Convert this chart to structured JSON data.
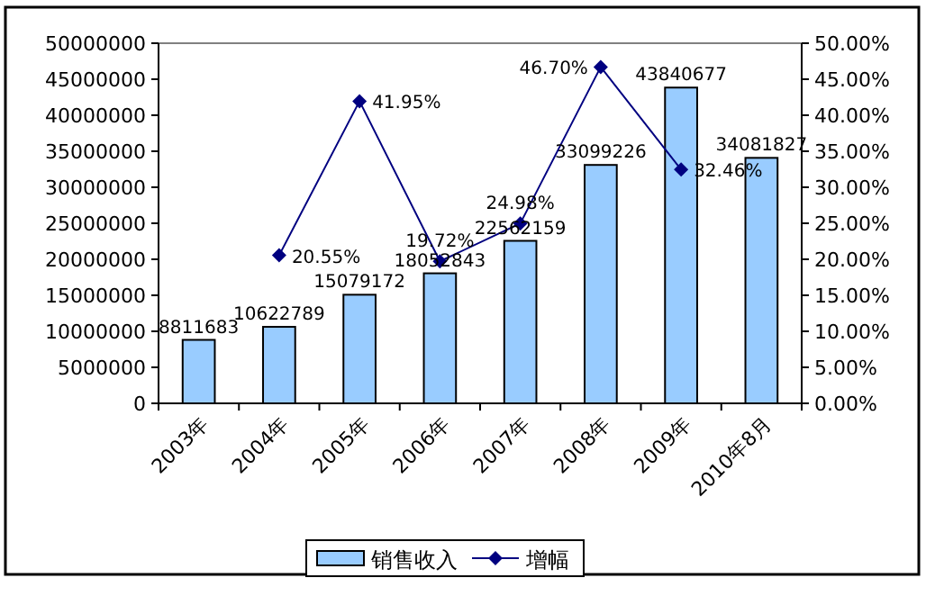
{
  "chart_data": {
    "type": "bar",
    "categories": [
      "2003年",
      "2004年",
      "2005年",
      "2006年",
      "2007年",
      "2008年",
      "2009年",
      "2010年8月"
    ],
    "series": [
      {
        "name": "销售收入",
        "color": "#99ccff",
        "values": [
          8811683,
          10622789,
          15079172,
          18052843,
          22562159,
          33099226,
          43840677,
          34081827
        ],
        "value_labels": [
          "8811683",
          "10622789",
          "15079172",
          "18052843",
          "22562159",
          "33099226",
          "43840677",
          "34081827"
        ]
      },
      {
        "name": "增幅",
        "type": "line",
        "axis": "y2",
        "color": "#000080",
        "marker": "diamond",
        "values": [
          null,
          20.55,
          41.95,
          19.72,
          24.98,
          46.7,
          32.46,
          null
        ],
        "value_labels": [
          null,
          "20.55%",
          "41.95%",
          "19.72%",
          "24.98%",
          "46.70%",
          "32.46%",
          null
        ]
      }
    ],
    "ylim": [
      0,
      50000000
    ],
    "yticks": [
      0,
      5000000,
      10000000,
      15000000,
      20000000,
      25000000,
      30000000,
      35000000,
      40000000,
      45000000,
      50000000
    ],
    "y2lim": [
      0,
      50
    ],
    "y2ticks": [
      {
        "value": 0,
        "label": "0.00%"
      },
      {
        "value": 5,
        "label": "5.00%"
      },
      {
        "value": 10,
        "label": "10.00%"
      },
      {
        "value": 15,
        "label": "15.00%"
      },
      {
        "value": 20,
        "label": "20.00%"
      },
      {
        "value": 25,
        "label": "25.00%"
      },
      {
        "value": 30,
        "label": "30.00%"
      },
      {
        "value": 35,
        "label": "35.00%"
      },
      {
        "value": 40,
        "label": "40.00%"
      },
      {
        "value": 45,
        "label": "45.00%"
      },
      {
        "value": 50,
        "label": "50.00%"
      }
    ],
    "grid": false,
    "legend": "bottom"
  }
}
